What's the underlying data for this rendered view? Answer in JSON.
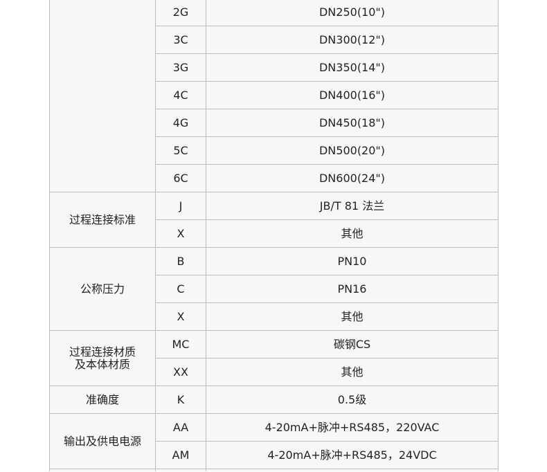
{
  "groups": [
    {
      "label": "",
      "rows": [
        [
          "2G",
          "DN250(10\")"
        ],
        [
          "3C",
          "DN300(12\")"
        ],
        [
          "3G",
          "DN350(14\")"
        ],
        [
          "4C",
          "DN400(16\")"
        ],
        [
          "4G",
          "DN450(18\")"
        ],
        [
          "5C",
          "DN500(20\")"
        ],
        [
          "6C",
          "DN600(24\")"
        ]
      ]
    },
    {
      "label": "过程连接标准",
      "rows": [
        [
          "J",
          "JB/T 81 法兰"
        ],
        [
          "X",
          "其他"
        ]
      ]
    },
    {
      "label": "公称压力",
      "rows": [
        [
          "B",
          "PN10"
        ],
        [
          "C",
          "PN16"
        ],
        [
          "X",
          "其他"
        ]
      ]
    },
    {
      "label": "过程连接材质\n及本体材质",
      "rows": [
        [
          "MC",
          "碳钢CS"
        ],
        [
          "XX",
          "其他"
        ]
      ]
    },
    {
      "label": "准确度",
      "rows": [
        [
          "K",
          "0.5级"
        ]
      ]
    },
    {
      "label": "输出及供电电源",
      "rows": [
        [
          "AA",
          "4-20mA+脉冲+RS485，220VAC"
        ],
        [
          "AM",
          "4-20mA+脉冲+RS485，24VDC"
        ]
      ]
    },
    {
      "label": "",
      "rows": [
        [
          "",
          ""
        ]
      ]
    }
  ]
}
